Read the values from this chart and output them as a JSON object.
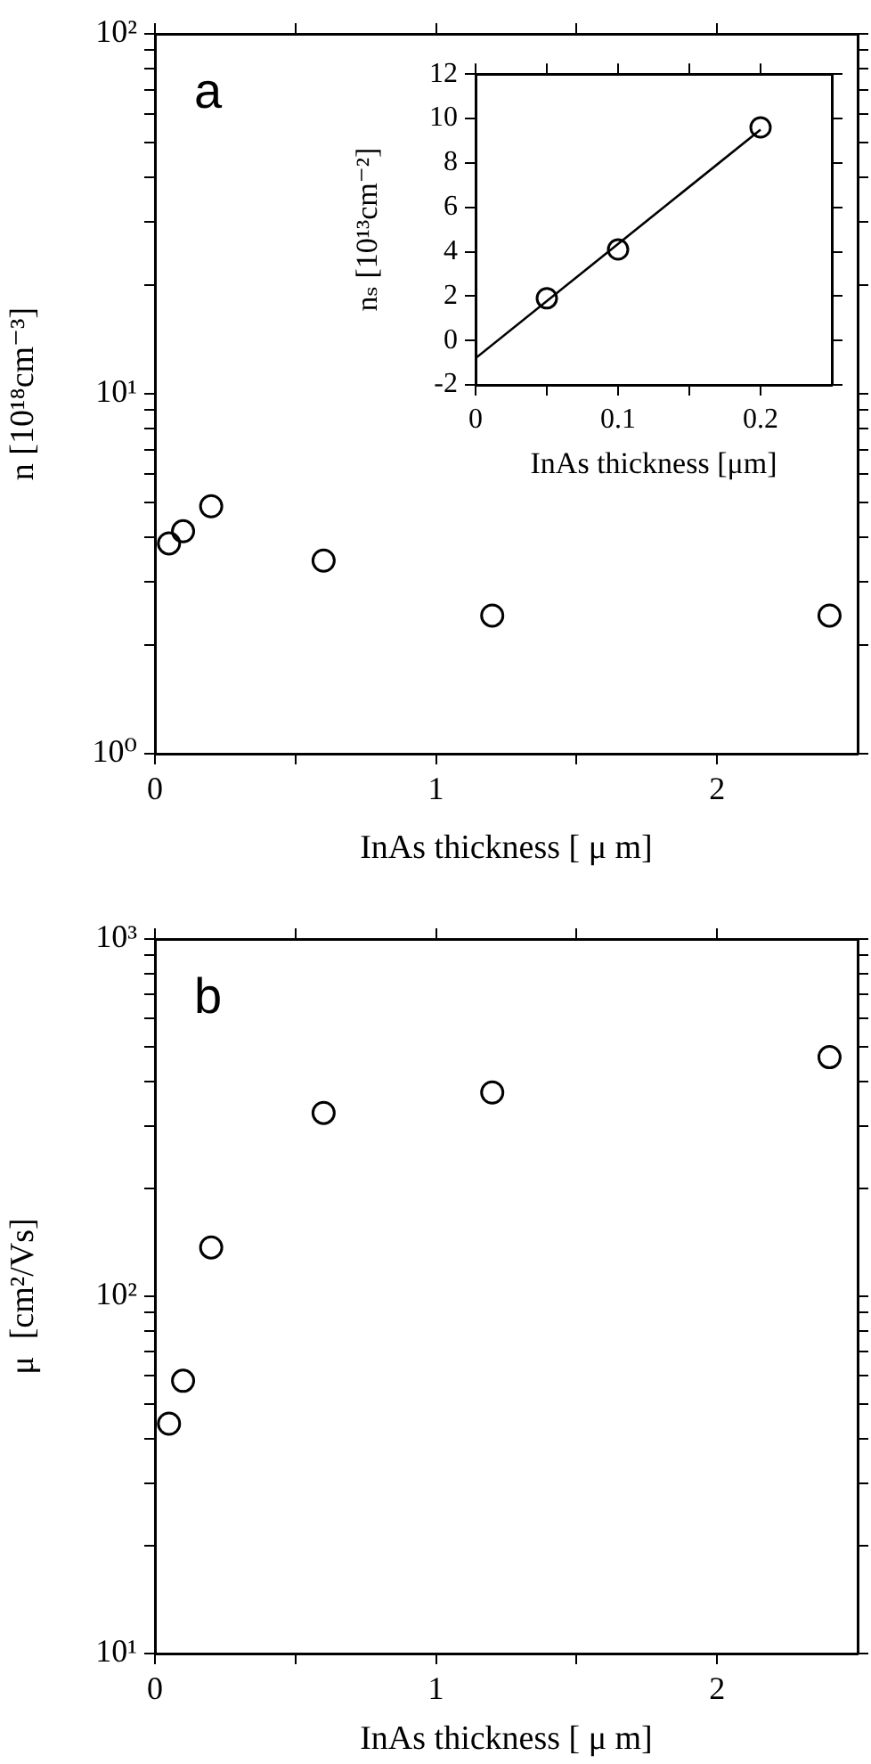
{
  "chart_data": [
    {
      "type": "scatter",
      "annotations": [
        "a"
      ],
      "xlabel": "InAs thickness [ μ m]",
      "ylabel": "n [10¹⁸cm⁻³]",
      "log": "y",
      "grid": false,
      "legend": false,
      "marker": "circle",
      "x": [
        0.05,
        0.1,
        0.2,
        0.6,
        1.2,
        2.4
      ],
      "series": [
        {
          "color": "#000000",
          "values": [
            3.84,
            4.15,
            4.87,
            3.44,
            2.42,
            2.42
          ]
        }
      ],
      "xlim": [
        0,
        2.5
      ],
      "xticks": [
        0,
        {
          "value": 0.5,
          "label": null
        },
        1,
        {
          "value": 1.5,
          "label": null
        },
        2
      ],
      "ylim": [
        1,
        100
      ],
      "yticks": [
        {
          "value": 1,
          "label": "10⁰"
        },
        {
          "value": 2,
          "label": null
        },
        {
          "value": 3,
          "label": null
        },
        {
          "value": 4,
          "label": null
        },
        {
          "value": 5,
          "label": null
        },
        {
          "value": 6,
          "label": null
        },
        {
          "value": 7,
          "label": null
        },
        {
          "value": 8,
          "label": null
        },
        {
          "value": 9,
          "label": null
        },
        {
          "value": 10,
          "label": "10¹"
        },
        {
          "value": 20,
          "label": null
        },
        {
          "value": 30,
          "label": null
        },
        {
          "value": 40,
          "label": null
        },
        {
          "value": 50,
          "label": null
        },
        {
          "value": 60,
          "label": null
        },
        {
          "value": 70,
          "label": null
        },
        {
          "value": 80,
          "label": null
        },
        {
          "value": 90,
          "label": null
        },
        {
          "value": 100,
          "label": "10²"
        }
      ]
    },
    {
      "type": "scatter",
      "xlabel": "InAs thickness [μm]",
      "ylabel": "nₛ [10¹³cm⁻²]",
      "grid": false,
      "legend": false,
      "marker": "circle",
      "x": [
        0.05,
        0.1,
        0.2
      ],
      "series": [
        {
          "color": "#000000",
          "values": [
            1.9,
            4.1,
            9.6
          ]
        },
        {
          "type": "line",
          "marker": "none",
          "color": "#000000",
          "x": [
            0,
            0.2
          ],
          "values": [
            -0.8,
            9.5
          ]
        }
      ],
      "xlim": [
        0,
        0.25
      ],
      "xticks": [
        0,
        {
          "value": 0.05,
          "label": null
        },
        0.1,
        {
          "value": 0.15,
          "label": null
        },
        0.2
      ],
      "ylim": [
        -2,
        12
      ],
      "yticks": [
        -2,
        0,
        2,
        4,
        6,
        8,
        10,
        12
      ]
    },
    {
      "type": "scatter",
      "annotations": [
        "b"
      ],
      "xlabel": "InAs thickness [ μ m]",
      "ylabel": "μ  [cm²/Vs]",
      "log": "y",
      "grid": false,
      "legend": false,
      "marker": "circle",
      "x": [
        0.05,
        0.1,
        0.2,
        0.6,
        1.2,
        2.4
      ],
      "series": [
        {
          "color": "#000000",
          "values": [
            44,
            58,
            137,
            326,
            372,
            467
          ]
        }
      ],
      "xlim": [
        0,
        2.5
      ],
      "xticks": [
        0,
        {
          "value": 0.5,
          "label": null
        },
        1,
        {
          "value": 1.5,
          "label": null
        },
        2
      ],
      "ylim": [
        10,
        1000
      ],
      "yticks": [
        {
          "value": 10,
          "label": "10¹"
        },
        {
          "value": 20,
          "label": null
        },
        {
          "value": 30,
          "label": null
        },
        {
          "value": 40,
          "label": null
        },
        {
          "value": 50,
          "label": null
        },
        {
          "value": 60,
          "label": null
        },
        {
          "value": 70,
          "label": null
        },
        {
          "value": 80,
          "label": null
        },
        {
          "value": 90,
          "label": null
        },
        {
          "value": 100,
          "label": "10²"
        },
        {
          "value": 200,
          "label": null
        },
        {
          "value": 300,
          "label": null
        },
        {
          "value": 400,
          "label": null
        },
        {
          "value": 500,
          "label": null
        },
        {
          "value": 600,
          "label": null
        },
        {
          "value": 700,
          "label": null
        },
        {
          "value": 800,
          "label": null
        },
        {
          "value": 900,
          "label": null
        },
        {
          "value": 1000,
          "label": "10³"
        }
      ]
    }
  ]
}
